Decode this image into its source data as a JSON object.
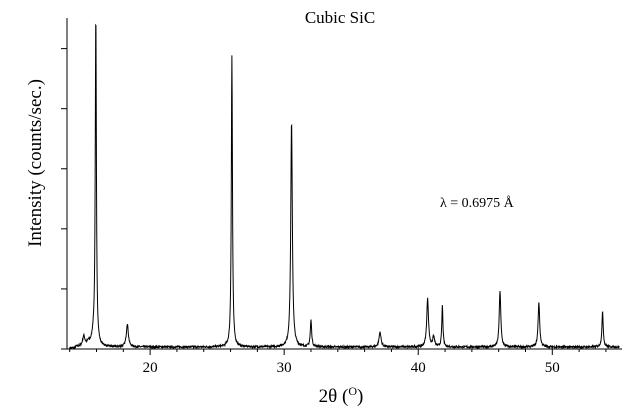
{
  "chart_data": {
    "type": "line",
    "title": "Cubic SiC",
    "xlabel": "2θ (",
    "xlabel_degree": "O",
    "xlabel_close": ")",
    "ylabel": "Intensity (counts/sec.)",
    "annotation": "λ = 0.6975 Å",
    "xlim": [
      13.8,
      55.2
    ],
    "ylim": [
      0,
      100
    ],
    "x_ticks": [
      {
        "value": 20,
        "label": "20"
      },
      {
        "value": 30,
        "label": "30"
      },
      {
        "value": 40,
        "label": "40"
      },
      {
        "value": 50,
        "label": "50"
      }
    ],
    "x_minor_step": 2,
    "y_tick_values": [
      0,
      18.15,
      36.3,
      54.45,
      72.6,
      90.75
    ],
    "y_tick_labels_shown": false,
    "grid": false,
    "line_color": "#000000",
    "background": "#ffffff",
    "baseline": 0.6,
    "peaks": [
      {
        "x": 15.05,
        "height": 3.0,
        "width": 0.1
      },
      {
        "x": 15.4,
        "height": 1.2,
        "width": 0.15
      },
      {
        "x": 15.75,
        "height": 2.5,
        "width": 0.12
      },
      {
        "x": 15.95,
        "height": 100.0,
        "width": 0.05
      },
      {
        "x": 18.3,
        "height": 7.0,
        "width": 0.09
      },
      {
        "x": 26.1,
        "height": 88.0,
        "width": 0.05
      },
      {
        "x": 30.55,
        "height": 68.0,
        "width": 0.07
      },
      {
        "x": 32.0,
        "height": 8.0,
        "width": 0.06
      },
      {
        "x": 37.15,
        "height": 4.5,
        "width": 0.09
      },
      {
        "x": 40.7,
        "height": 14.5,
        "width": 0.08
      },
      {
        "x": 41.15,
        "height": 3.0,
        "width": 0.08
      },
      {
        "x": 41.8,
        "height": 12.5,
        "width": 0.05
      },
      {
        "x": 46.1,
        "height": 17.0,
        "width": 0.07
      },
      {
        "x": 49.0,
        "height": 13.5,
        "width": 0.07
      },
      {
        "x": 53.75,
        "height": 10.5,
        "width": 0.06
      }
    ]
  }
}
